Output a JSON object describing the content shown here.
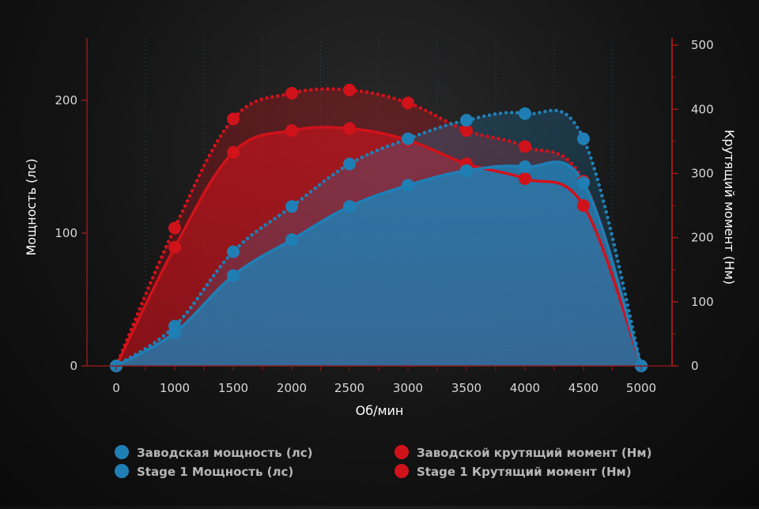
{
  "colors": {
    "blue": "#1f7fb5",
    "red": "#d0121b",
    "axis_left": "#8c1c1c",
    "axis_right": "#a11919",
    "grid": "#2e5e78"
  },
  "chart_data": {
    "type": "area",
    "xlabel": "Об/мин",
    "ylabel_left": "Мощность (лс)",
    "ylabel_right": "Крутящий момент (Нм)",
    "x": [
      0,
      1000,
      1500,
      2000,
      2500,
      3000,
      3500,
      4000,
      4500,
      5000
    ],
    "x_tick_labels": [
      "0",
      "1000",
      "1500",
      "2000",
      "2500",
      "3000",
      "3500",
      "4000",
      "4500",
      "5000"
    ],
    "ylim_left": [
      0,
      260
    ],
    "ylim_right": [
      0,
      510
    ],
    "yticks_left": [
      0,
      100,
      200
    ],
    "yticks_right": [
      0,
      100,
      200,
      300,
      400,
      500
    ],
    "grid": "vertical-dotted",
    "legend_position": "bottom",
    "series": [
      {
        "name": "Заводская мощность (лс)",
        "axis": "left",
        "style": "solid",
        "color": "#1f7fb5",
        "values": [
          0,
          25,
          68,
          95,
          120,
          136,
          147,
          150,
          138,
          0
        ]
      },
      {
        "name": "Stage 1 Мощность (лс)",
        "axis": "left",
        "style": "dotted",
        "color": "#1f7fb5",
        "values": [
          0,
          30,
          86,
          120,
          152,
          171,
          185,
          190,
          171,
          0
        ]
      },
      {
        "name": "Заводской крутящий момент (Нм)",
        "axis": "right",
        "style": "solid",
        "color": "#d0121b",
        "values": [
          0,
          185,
          333,
          367,
          370,
          352,
          315,
          292,
          250,
          0
        ]
      },
      {
        "name": "Stage 1 Крутящий момент (Нм)",
        "axis": "right",
        "style": "dotted",
        "color": "#d0121b",
        "values": [
          0,
          215,
          385,
          425,
          430,
          410,
          367,
          342,
          288,
          0
        ]
      }
    ]
  }
}
